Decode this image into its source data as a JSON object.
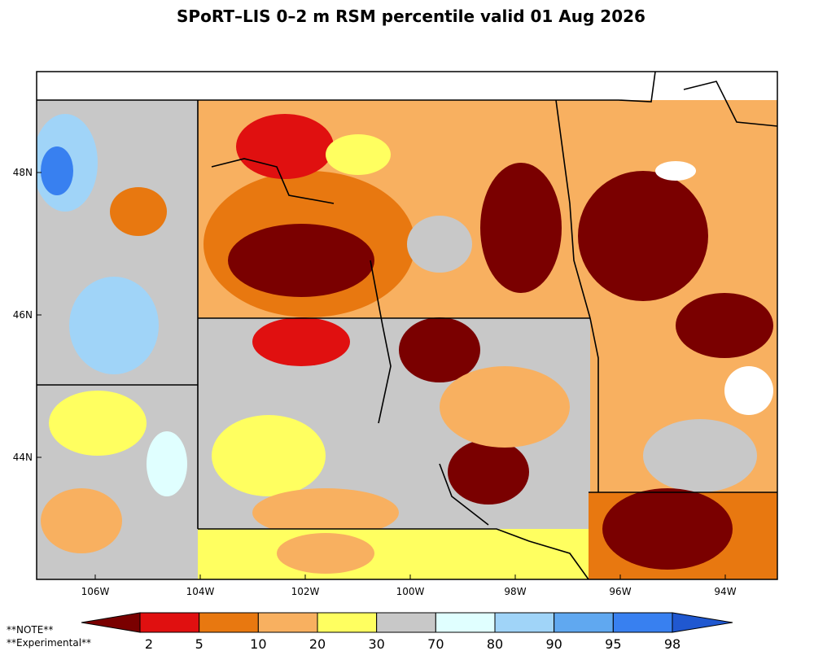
{
  "title": "SPoRT–LIS 0–2 m RSM percentile valid 01 Aug 2026",
  "map": {
    "lon_labels": [
      "106W",
      "104W",
      "102W",
      "100W",
      "98W",
      "96W",
      "94W"
    ],
    "lat_labels": [
      "48N",
      "46N",
      "44N"
    ]
  },
  "colorbar": {
    "ticks": [
      2,
      5,
      10,
      20,
      30,
      70,
      80,
      90,
      95,
      98
    ],
    "colors": [
      "#7a0000",
      "#e01010",
      "#e87810",
      "#f8b060",
      "#ffff60",
      "#c8c8c8",
      "#e0ffff",
      "#a0d4f8",
      "#60a8f0",
      "#3880f0",
      "#2058d0"
    ]
  },
  "notes": [
    "**NOTE**",
    "**Experimental**"
  ]
}
